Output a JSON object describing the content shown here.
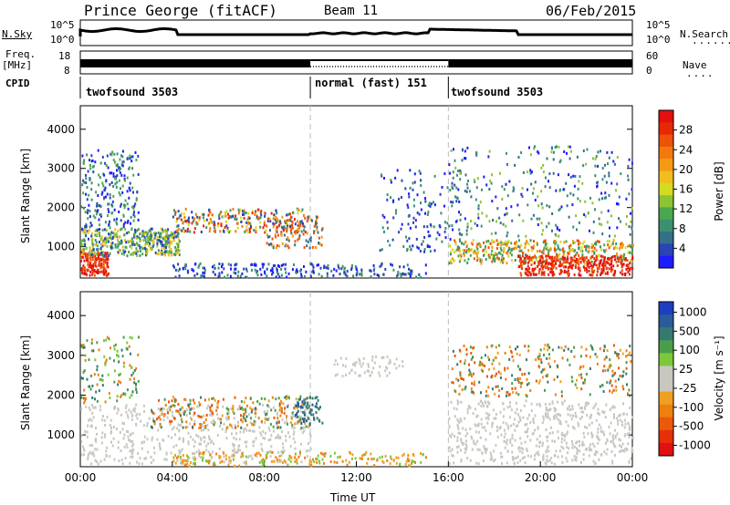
{
  "header": {
    "station": "Prince George (fitACF)",
    "beam": "Beam 11",
    "date": "06/Feb/2015"
  },
  "nsky_panel": {
    "left_label": "N.Sky",
    "right_label": "N.Search",
    "left_ticks": [
      "10^5",
      "10^0"
    ],
    "right_ticks": [
      "10^5",
      "10^0"
    ]
  },
  "freq_panel": {
    "left_label_1": "Freq.",
    "left_label_2": "[MHz]",
    "left_ticks": [
      "18",
      "8"
    ],
    "right_label": "Nave",
    "right_ticks": [
      "60",
      "0"
    ]
  },
  "cpid_panel": {
    "label": "CPID",
    "segments": [
      {
        "name": "twofsound 3503",
        "start_hour": 0,
        "end_hour": 10
      },
      {
        "name": "normal (fast) 151",
        "start_hour": 10,
        "end_hour": 16
      },
      {
        "name": "twofsound 3503",
        "start_hour": 16,
        "end_hour": 24
      }
    ]
  },
  "chart_data": [
    {
      "type": "heatmap",
      "name": "power",
      "ylabel": "Slant Range [km]",
      "yticks": [
        "1000",
        "2000",
        "3000",
        "4000"
      ],
      "ylim": [
        200,
        4600
      ],
      "xlim": [
        0,
        24
      ],
      "colorbar_label": "Power [dB]",
      "colorbar_ticks": [
        "28",
        "24",
        "20",
        "16",
        "12",
        "8",
        "4"
      ],
      "colorbar_range": [
        0,
        32
      ],
      "colorbar_colors": [
        "#1c1cff",
        "#2a43b6",
        "#33708a",
        "#3c9070",
        "#4aa84e",
        "#8cc436",
        "#d2dc23",
        "#f2bd1e",
        "#f59a14",
        "#f27a0c",
        "#ec5208",
        "#e82804",
        "#e41010"
      ]
    },
    {
      "type": "heatmap",
      "name": "velocity",
      "ylabel": "Slant Range [km]",
      "yticks": [
        "1000",
        "2000",
        "3000",
        "4000"
      ],
      "ylim": [
        200,
        4600
      ],
      "xlim": [
        0,
        24
      ],
      "xticks": [
        "00:00",
        "04:00",
        "08:00",
        "12:00",
        "16:00",
        "20:00",
        "00:00"
      ],
      "xlabel": "Time UT",
      "colorbar_label": "Velocity [m s⁻¹]",
      "colorbar_ticks": [
        "1000",
        "500",
        "100",
        "25",
        "-25",
        "-100",
        "-500",
        "-1000"
      ],
      "colorbar_colors": [
        "#1d3ec0",
        "#2a5c9a",
        "#357a6e",
        "#4a9e4a",
        "#7cc83c",
        "#c8c8c0",
        "#c8c8c0",
        "#f0a020",
        "#ee8010",
        "#ea5a08",
        "#e63008",
        "#e21010"
      ]
    }
  ]
}
